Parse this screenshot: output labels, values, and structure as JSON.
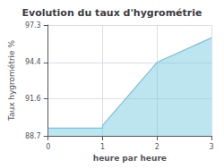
{
  "chart_data": {
    "type": "area",
    "title": "Evolution du taux d'hygrométrie",
    "xlabel": "heure par heure",
    "ylabel": "Taux hygrométrie %",
    "x": [
      0,
      1,
      1,
      2,
      3
    ],
    "values": [
      89.3,
      89.3,
      89.5,
      94.4,
      96.3
    ],
    "color": "#6cc5de",
    "xlim": [
      0,
      3
    ],
    "xticks": [
      0,
      1,
      2,
      3
    ],
    "ylim": [
      88.7,
      97.3
    ],
    "yticks": [
      88.7,
      91.6,
      94.4,
      97.3
    ],
    "grid": true
  }
}
